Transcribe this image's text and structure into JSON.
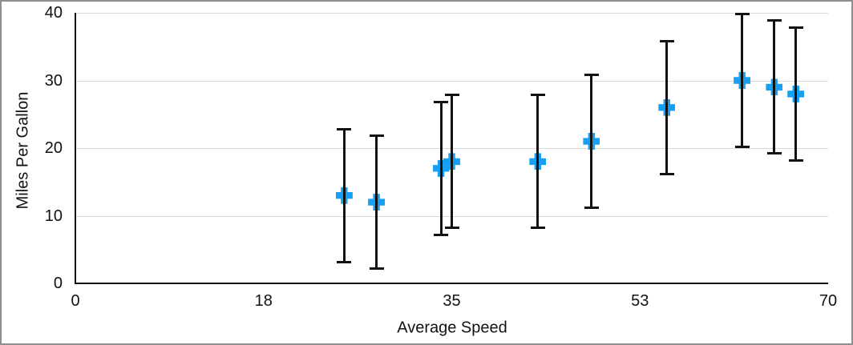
{
  "chart_data": {
    "type": "scatter",
    "title": "",
    "xlabel": "Average Speed",
    "ylabel": "Miles Per Gallon",
    "xlim": [
      0,
      70
    ],
    "ylim": [
      0,
      40
    ],
    "x_ticks": {
      "positions": [
        0,
        17.5,
        35,
        52.5,
        70
      ],
      "labels": [
        "0",
        "18",
        "35",
        "53",
        "70"
      ]
    },
    "y_ticks": {
      "positions": [
        0,
        10,
        20,
        30,
        40
      ],
      "labels": [
        "0",
        "10",
        "20",
        "30",
        "40"
      ]
    },
    "grid": "horizontal",
    "legend": "none",
    "marker": "plus",
    "marker_color": "#17a0f2",
    "error_bar_color": "#111111",
    "error_bar_type": "symmetric",
    "points": [
      {
        "x": 25,
        "y": 13,
        "err": 10
      },
      {
        "x": 28,
        "y": 12,
        "err": 10
      },
      {
        "x": 34,
        "y": 17,
        "err": 10
      },
      {
        "x": 35,
        "y": 18,
        "err": 10
      },
      {
        "x": 43,
        "y": 18,
        "err": 10
      },
      {
        "x": 48,
        "y": 21,
        "err": 10
      },
      {
        "x": 55,
        "y": 26,
        "err": 10
      },
      {
        "x": 62,
        "y": 30,
        "err": 10
      },
      {
        "x": 65,
        "y": 29,
        "err": 10
      },
      {
        "x": 67,
        "y": 28,
        "err": 10
      }
    ]
  }
}
